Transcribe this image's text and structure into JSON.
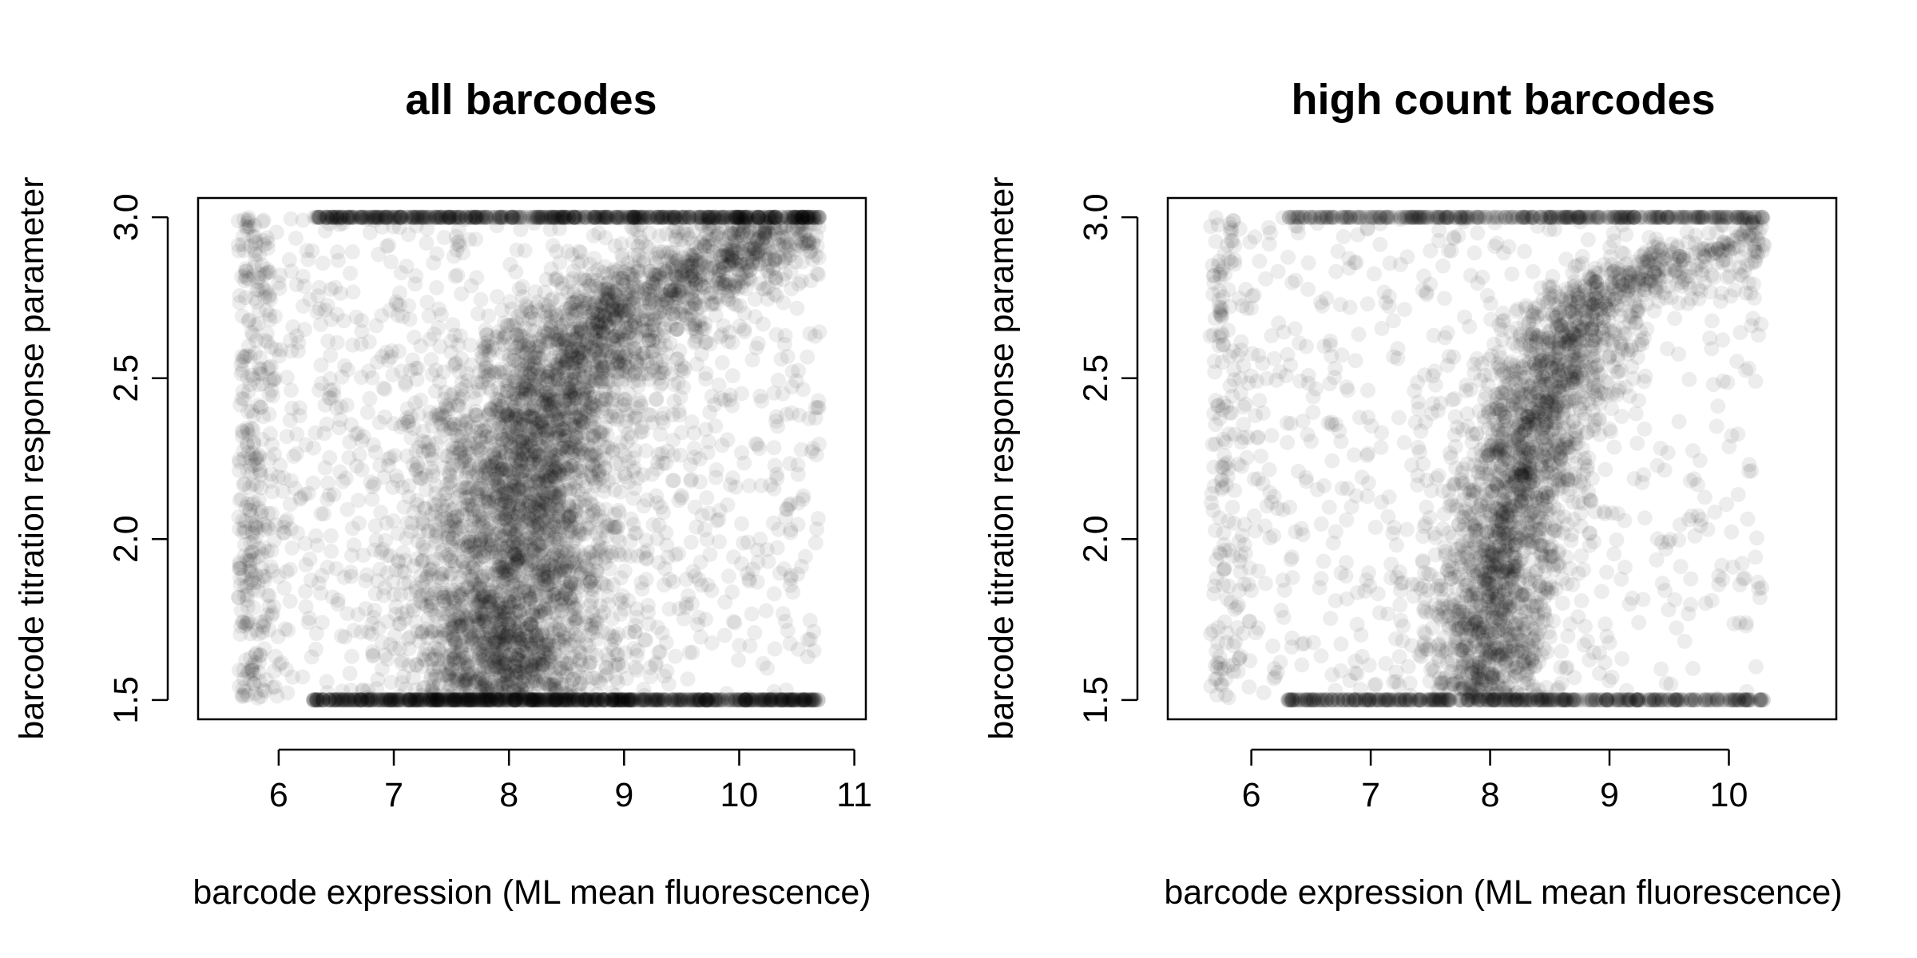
{
  "chart_data": [
    {
      "type": "scatter",
      "title": "all barcodes",
      "xlabel": "barcode expression (ML mean fluorescence)",
      "ylabel": "barcode titration response parameter",
      "xlim": [
        5.3,
        11.1
      ],
      "ylim": [
        1.44,
        3.06
      ],
      "xticks": [
        6,
        7,
        8,
        9,
        10,
        11
      ],
      "yticks": [
        1.5,
        2.0,
        2.5,
        3.0
      ],
      "xtick_labels": [
        "6",
        "7",
        "8",
        "9",
        "10",
        "11"
      ],
      "ytick_labels": [
        "1.5",
        "2.0",
        "2.5",
        "3.0"
      ],
      "point_color": "#000000",
      "point_alpha": 0.07,
      "grid": false,
      "legend": "none",
      "density_profile": {
        "description_of_main_ridge": "x center increases with y",
        "ridge": [
          [
            1.5,
            7.95
          ],
          [
            1.8,
            8.0
          ],
          [
            2.0,
            8.05
          ],
          [
            2.2,
            8.15
          ],
          [
            2.4,
            8.3
          ],
          [
            2.6,
            8.6
          ],
          [
            2.7,
            8.9
          ],
          [
            2.8,
            9.4
          ],
          [
            2.9,
            10.1
          ],
          [
            3.0,
            10.5
          ]
        ],
        "y_floor": 1.5,
        "y_ceiling": 3.0
      }
    },
    {
      "type": "scatter",
      "title": "high count barcodes",
      "xlabel": "barcode expression (ML mean fluorescence)",
      "ylabel": "barcode titration response parameter",
      "xlim": [
        5.3,
        10.9
      ],
      "ylim": [
        1.44,
        3.06
      ],
      "xticks": [
        6,
        7,
        8,
        9,
        10
      ],
      "yticks": [
        1.5,
        2.0,
        2.5,
        3.0
      ],
      "xtick_labels": [
        "6",
        "7",
        "8",
        "9",
        "10"
      ],
      "ytick_labels": [
        "1.5",
        "2.0",
        "2.5",
        "3.0"
      ],
      "point_color": "#000000",
      "point_alpha": 0.07,
      "grid": false,
      "legend": "none",
      "density_profile": {
        "ridge": [
          [
            1.55,
            7.95
          ],
          [
            1.8,
            8.0
          ],
          [
            2.0,
            8.1
          ],
          [
            2.2,
            8.25
          ],
          [
            2.4,
            8.4
          ],
          [
            2.6,
            8.6
          ],
          [
            2.75,
            8.9
          ],
          [
            2.85,
            9.4
          ],
          [
            2.9,
            10.0
          ],
          [
            2.92,
            10.4
          ]
        ],
        "y_floor": 1.5,
        "y_ceiling": 3.0
      }
    }
  ]
}
